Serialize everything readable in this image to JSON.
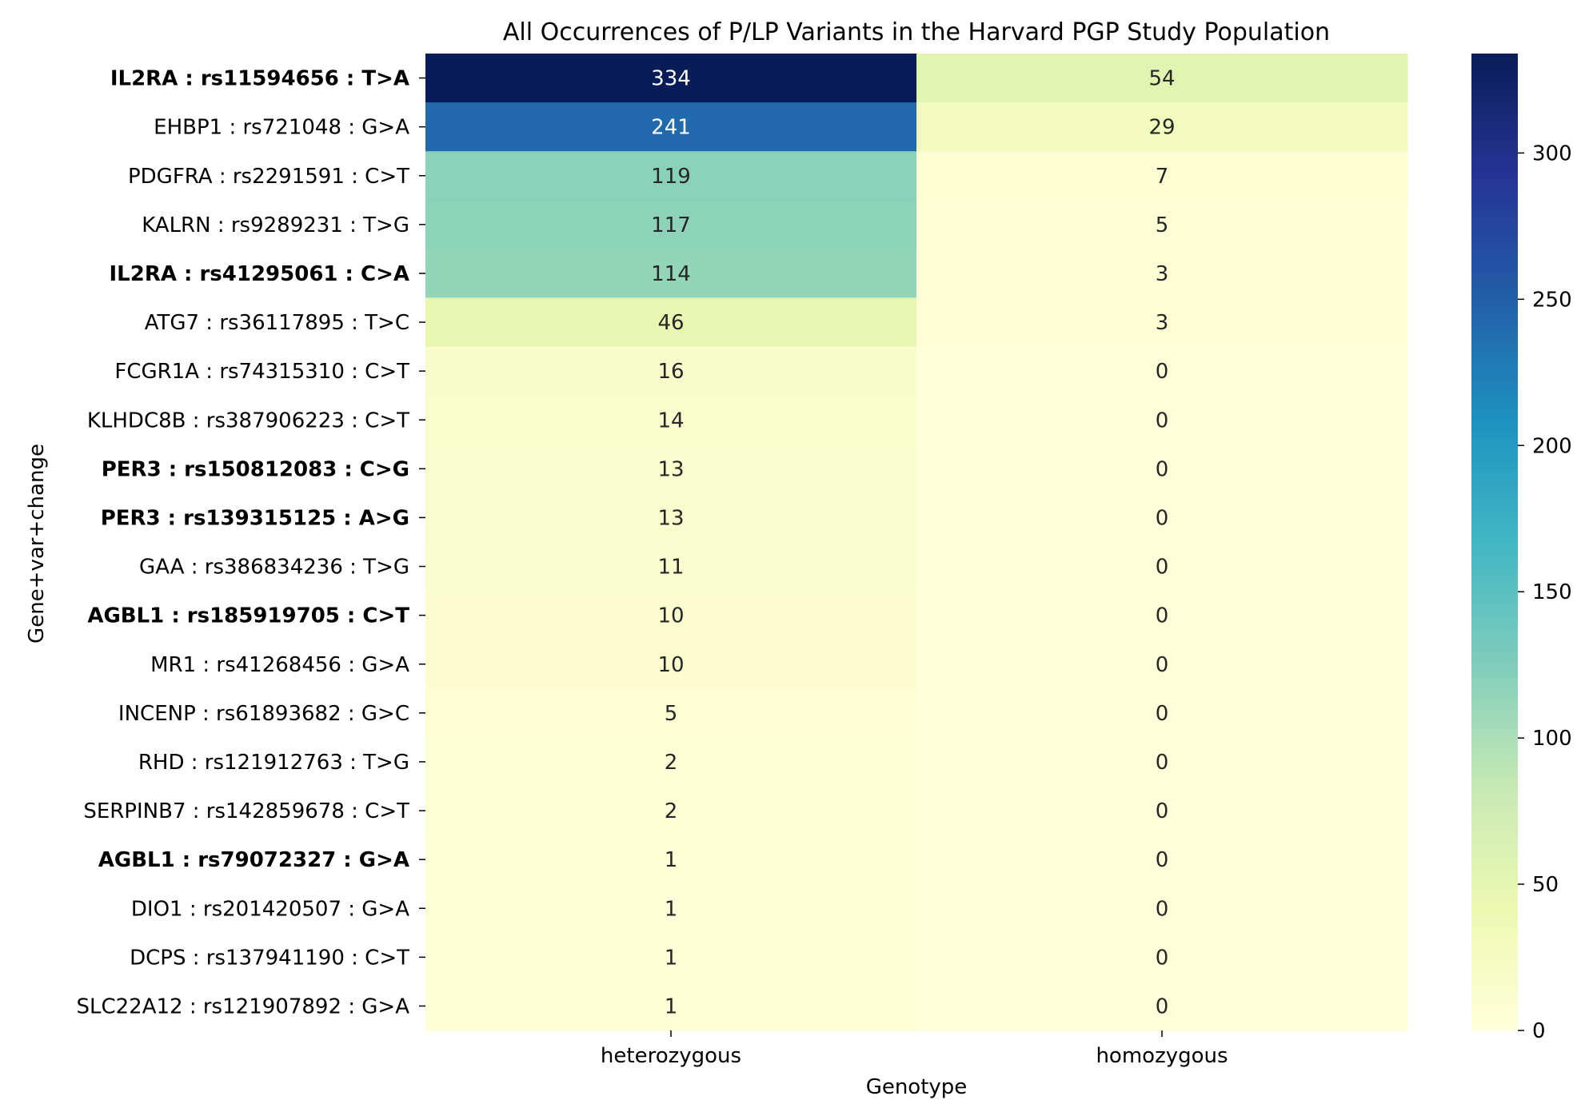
{
  "chart_data": {
    "type": "heatmap",
    "title": "All Occurrences of P/LP Variants in the Harvard PGP Study Population",
    "xlabel": "Genotype",
    "ylabel": "Gene+var+change",
    "columns": [
      "heterozygous",
      "homozygous"
    ],
    "rows": [
      {
        "label": "IL2RA : rs11594656 : T>A",
        "values": [
          334,
          54
        ],
        "highlight": "#7dcbb4"
      },
      {
        "label": "EHBP1 : rs721048 : G>A",
        "values": [
          241,
          29
        ]
      },
      {
        "label": "PDGFRA : rs2291591 : C>T",
        "values": [
          119,
          7
        ]
      },
      {
        "label": "KALRN : rs9289231 : T>G",
        "values": [
          117,
          5
        ]
      },
      {
        "label": "IL2RA : rs41295061 : C>A",
        "values": [
          114,
          3
        ],
        "highlight": "#7dcbb4"
      },
      {
        "label": "ATG7 : rs36117895 : T>C",
        "values": [
          46,
          3
        ]
      },
      {
        "label": "FCGR1A : rs74315310 : C>T",
        "values": [
          16,
          0
        ]
      },
      {
        "label": "KLHDC8B : rs387906223 : C>T",
        "values": [
          14,
          0
        ]
      },
      {
        "label": "PER3 : rs150812083 : C>G",
        "values": [
          13,
          0
        ],
        "highlight": "#95a5d2"
      },
      {
        "label": "PER3 : rs139315125 : A>G",
        "values": [
          13,
          0
        ],
        "highlight": "#95a5d2"
      },
      {
        "label": "GAA : rs386834236 : T>G",
        "values": [
          11,
          0
        ]
      },
      {
        "label": "AGBL1 : rs185919705 : C>T",
        "values": [
          10,
          0
        ],
        "highlight": "#ef9068"
      },
      {
        "label": "MR1 : rs41268456 : G>A",
        "values": [
          10,
          0
        ]
      },
      {
        "label": "INCENP : rs61893682 : G>C",
        "values": [
          5,
          0
        ]
      },
      {
        "label": "RHD : rs121912763 : T>G",
        "values": [
          2,
          0
        ]
      },
      {
        "label": "SERPINB7 : rs142859678 : C>T",
        "values": [
          2,
          0
        ]
      },
      {
        "label": "AGBL1 : rs79072327 : G>A",
        "values": [
          1,
          0
        ],
        "highlight": "#ef9068"
      },
      {
        "label": "DIO1 : rs201420507 : G>A",
        "values": [
          1,
          0
        ]
      },
      {
        "label": "DCPS : rs137941190 : C>T",
        "values": [
          1,
          0
        ]
      },
      {
        "label": "SLC22A12 : rs121907892 : G>A",
        "values": [
          1,
          0
        ]
      }
    ],
    "colormap": "YlGnBu",
    "vmin": 0,
    "vmax": 334,
    "colorbar_ticks": [
      0,
      50,
      100,
      150,
      200,
      250,
      300
    ]
  }
}
